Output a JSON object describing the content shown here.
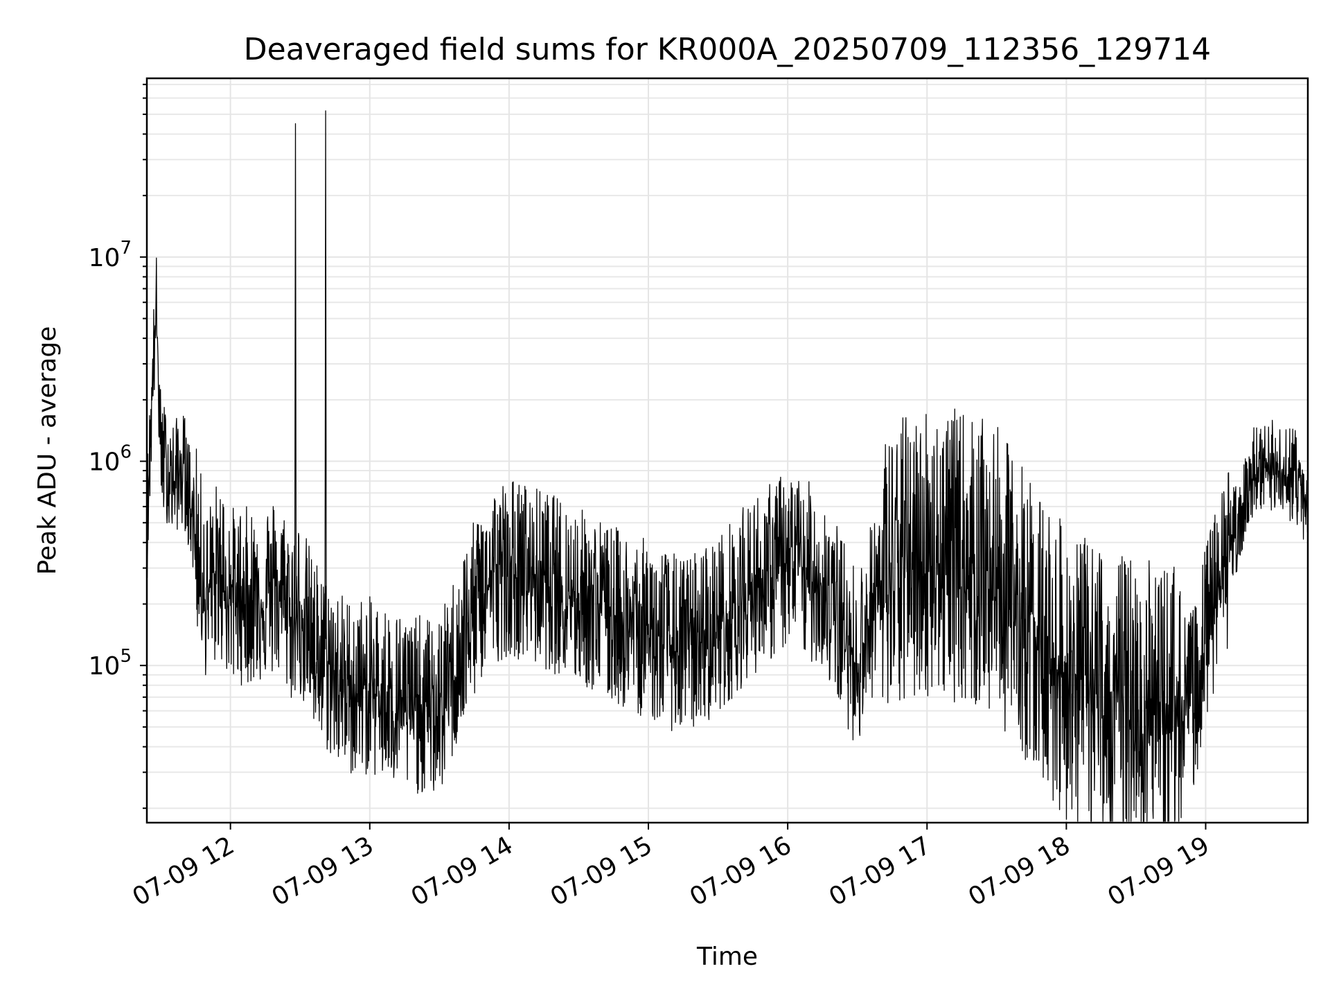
{
  "chart_data": {
    "type": "line",
    "title": "Deaveraged field sums for KR000A_20250709_112356_129714",
    "xlabel": "Time",
    "ylabel": "Peak ADU - average",
    "yscale": "log",
    "y_tick_base": "10",
    "y_tick_exponents": [
      "5",
      "6",
      "7"
    ],
    "x_tick_labels": [
      "07-09 12",
      "07-09 13",
      "07-09 14",
      "07-09 15",
      "07-09 16",
      "07-09 17",
      "07-09 18",
      "07-09 19"
    ],
    "xlim": [
      "2025-07-09 11:24",
      "2025-07-09 19:44"
    ],
    "ylim": [
      17000,
      75000000
    ],
    "grid": true,
    "line_color": "#000000",
    "series": [
      {
        "x": [
          "2025-07-09 11:24",
          "2025-07-09 11:26",
          "2025-07-09 11:28",
          "2025-07-09 11:30",
          "2025-07-09 11:35",
          "2025-07-09 11:40",
          "2025-07-09 11:45",
          "2025-07-09 11:50",
          "2025-07-09 11:55",
          "2025-07-09 12:00",
          "2025-07-09 12:10",
          "2025-07-09 12:20",
          "2025-07-09 12:27",
          "2025-07-09 12:28",
          "2025-07-09 12:30",
          "2025-07-09 12:35",
          "2025-07-09 12:40",
          "2025-07-09 12:41",
          "2025-07-09 12:43",
          "2025-07-09 12:50",
          "2025-07-09 13:00",
          "2025-07-09 13:15",
          "2025-07-09 13:30",
          "2025-07-09 13:40",
          "2025-07-09 13:50",
          "2025-07-09 14:00",
          "2025-07-09 14:15",
          "2025-07-09 14:30",
          "2025-07-09 14:45",
          "2025-07-09 15:00",
          "2025-07-09 15:15",
          "2025-07-09 15:30",
          "2025-07-09 15:45",
          "2025-07-09 16:00",
          "2025-07-09 16:15",
          "2025-07-09 16:30",
          "2025-07-09 16:40",
          "2025-07-09 16:50",
          "2025-07-09 17:00",
          "2025-07-09 17:15",
          "2025-07-09 17:30",
          "2025-07-09 17:45",
          "2025-07-09 18:00",
          "2025-07-09 18:15",
          "2025-07-09 18:30",
          "2025-07-09 18:45",
          "2025-07-09 18:55",
          "2025-07-09 19:00",
          "2025-07-09 19:10",
          "2025-07-09 19:20",
          "2025-07-09 19:30",
          "2025-07-09 19:40",
          "2025-07-09 19:44"
        ],
        "y": [
          500000,
          2000000,
          6500000,
          1200000,
          900000,
          1000000,
          500000,
          250000,
          350000,
          250000,
          250000,
          280000,
          200000,
          45000000,
          220000,
          150000,
          120000,
          52000000,
          110000,
          90000,
          90000,
          75000,
          70000,
          150000,
          300000,
          350000,
          300000,
          250000,
          200000,
          170000,
          140000,
          180000,
          280000,
          380000,
          300000,
          120000,
          300000,
          400000,
          450000,
          420000,
          350000,
          200000,
          110000,
          90000,
          80000,
          75000,
          78000,
          160000,
          400000,
          900000,
          1000000,
          900000,
          600000
        ]
      }
    ]
  }
}
